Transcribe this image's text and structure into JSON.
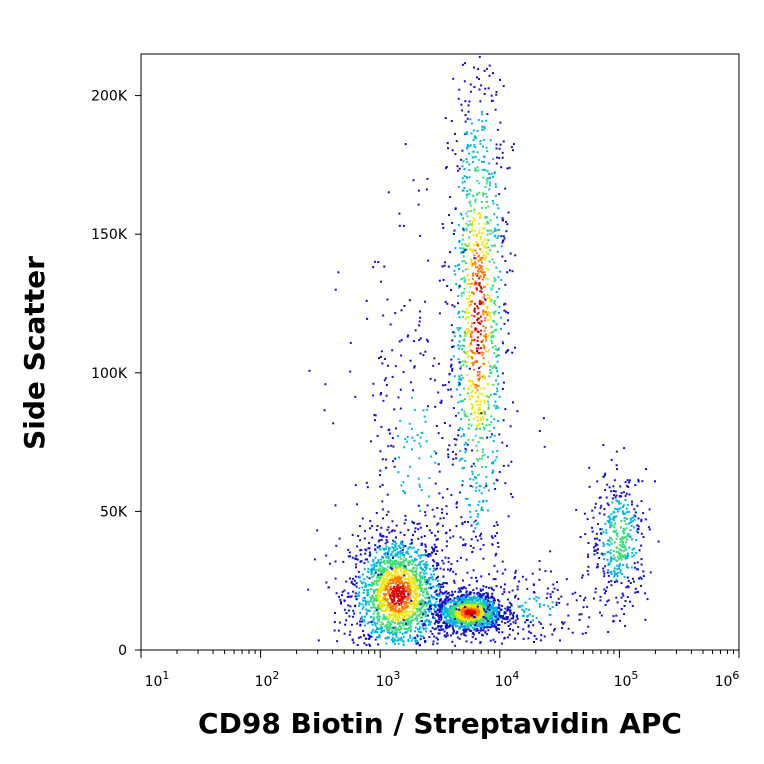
{
  "chart_data": {
    "type": "scatter",
    "style": "density-dot-plot",
    "xlabel": "CD98 Biotin / Streptavidin APC",
    "ylabel": "Side Scatter",
    "xscale": "log",
    "xlim": [
      10,
      1000000
    ],
    "ylim": [
      0,
      215000
    ],
    "x_ticks": [
      {
        "value": 10,
        "base": "10",
        "exp": "1"
      },
      {
        "value": 100,
        "base": "10",
        "exp": "2"
      },
      {
        "value": 1000,
        "base": "10",
        "exp": "3"
      },
      {
        "value": 10000,
        "base": "10",
        "exp": "4"
      },
      {
        "value": 100000,
        "base": "10",
        "exp": "5"
      },
      {
        "value": 1000000,
        "base": "10",
        "exp": "6"
      }
    ],
    "y_ticks": [
      {
        "value": 0,
        "label": "0"
      },
      {
        "value": 50000,
        "label": "50K"
      },
      {
        "value": 100000,
        "label": "100K"
      },
      {
        "value": 150000,
        "label": "150K"
      },
      {
        "value": 200000,
        "label": "200K"
      }
    ],
    "populations": [
      {
        "log10_x_center": 3.15,
        "y_center": 20000,
        "log10_x_spread": 0.2,
        "y_spread": 11000,
        "relative_density": 0.35
      },
      {
        "log10_x_center": 3.75,
        "y_center": 13500,
        "log10_x_spread": 0.14,
        "y_spread": 3500,
        "relative_density": 0.25
      },
      {
        "log10_x_center": 3.82,
        "y_center": 120000,
        "log10_x_spread": 0.12,
        "y_spread": 45000,
        "relative_density": 0.22
      },
      {
        "log10_x_center": 5.0,
        "y_center": 40000,
        "log10_x_spread": 0.12,
        "y_spread": 12000,
        "relative_density": 0.08
      },
      {
        "log10_x_center": 3.3,
        "y_center": 70000,
        "log10_x_spread": 0.3,
        "y_spread": 40000,
        "relative_density": 0.06
      },
      {
        "log10_x_center": 4.3,
        "y_center": 15000,
        "log10_x_spread": 0.3,
        "y_spread": 8000,
        "relative_density": 0.04
      }
    ],
    "density_colors": [
      "#1010c8",
      "#00b4e6",
      "#3cdc78",
      "#f0e600",
      "#ff7800",
      "#e00000"
    ],
    "grid": false,
    "legend": "none"
  }
}
